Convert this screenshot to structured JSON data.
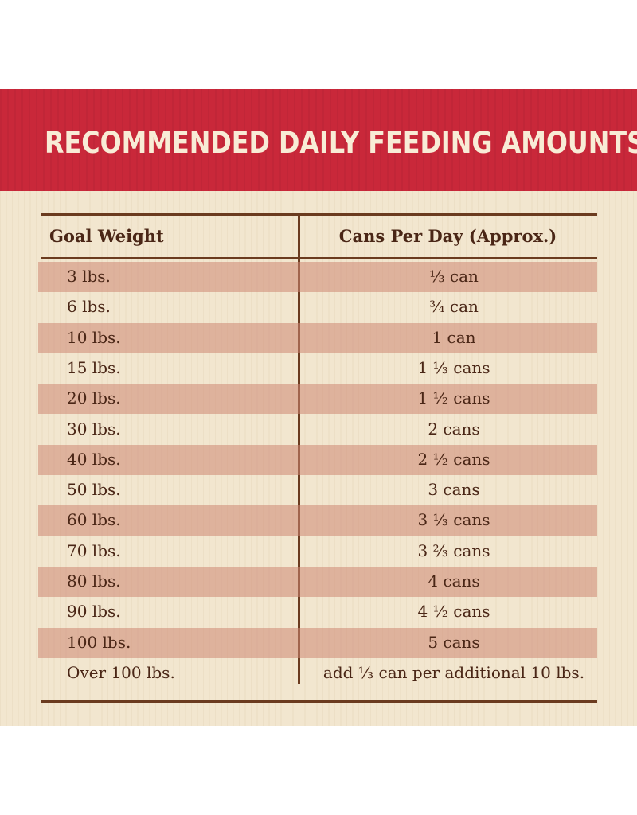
{
  "title": "RECOMMENDED DAILY FEEDING AMOUNTS:",
  "table": {
    "headers": [
      "Goal Weight",
      "Cans Per Day (Approx.)"
    ],
    "rows": [
      {
        "weight": "3 lbs.",
        "cans": "⅓ can"
      },
      {
        "weight": "6 lbs.",
        "cans": "¾ can"
      },
      {
        "weight": "10 lbs.",
        "cans": "1 can"
      },
      {
        "weight": "15 lbs.",
        "cans": "1 ⅓ cans"
      },
      {
        "weight": "20 lbs.",
        "cans": "1 ½ cans"
      },
      {
        "weight": "30 lbs.",
        "cans": "2 cans"
      },
      {
        "weight": "40 lbs.",
        "cans": "2 ½ cans"
      },
      {
        "weight": "50 lbs.",
        "cans": "3 cans"
      },
      {
        "weight": "60 lbs.",
        "cans": "3 ⅓ cans"
      },
      {
        "weight": "70 lbs.",
        "cans": "3 ⅔ cans"
      },
      {
        "weight": "80 lbs.",
        "cans": "4 cans"
      },
      {
        "weight": "90 lbs.",
        "cans": "4 ½ cans"
      },
      {
        "weight": "100 lbs.",
        "cans": "5 cans"
      },
      {
        "weight": "Over 100 lbs.",
        "cans": "add ⅓ can per additional 10 lbs."
      }
    ]
  },
  "colors": {
    "banner": "#c9283a",
    "background": "#f2e6cf",
    "row_shade": "#d88f7a",
    "text": "#4a2616",
    "rule": "#6b3b1f"
  }
}
